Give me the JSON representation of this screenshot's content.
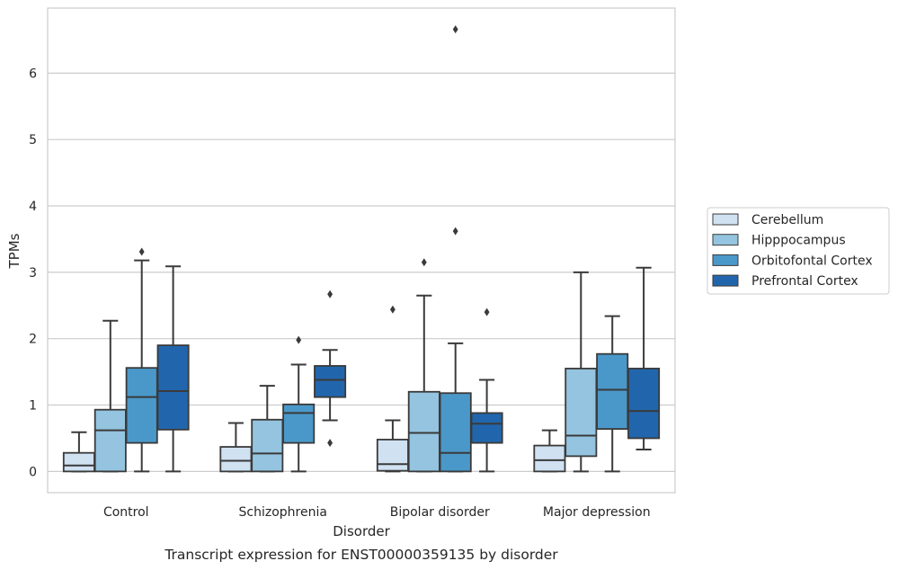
{
  "chart_data": {
    "type": "box",
    "caption": "Transcript expression for ENST00000359135 by disorder",
    "xlabel": "Disorder",
    "ylabel": "TPMs",
    "ylim": [
      -0.32,
      6.98
    ],
    "yticks": [
      0,
      1,
      2,
      3,
      4,
      5,
      6
    ],
    "grid": true,
    "legend_position": "right",
    "categories": [
      "Control",
      "Schizophrenia",
      "Bipolar disorder",
      "Major depression"
    ],
    "series": [
      {
        "name": "Cerebellum",
        "color": "#d0e1f2",
        "boxes": [
          {
            "whislo": 0.0,
            "q1": 0.0,
            "med": 0.09,
            "q3": 0.28,
            "whishi": 0.59,
            "fliers": []
          },
          {
            "whislo": 0.0,
            "q1": 0.0,
            "med": 0.16,
            "q3": 0.37,
            "whishi": 0.73,
            "fliers": []
          },
          {
            "whislo": 0.0,
            "q1": 0.01,
            "med": 0.11,
            "q3": 0.48,
            "whishi": 0.77,
            "fliers": [
              2.44
            ]
          },
          {
            "whislo": 0.0,
            "q1": 0.0,
            "med": 0.17,
            "q3": 0.39,
            "whishi": 0.62,
            "fliers": []
          }
        ]
      },
      {
        "name": "Hipppocampus",
        "color": "#94c4df",
        "boxes": [
          {
            "whislo": 0.0,
            "q1": 0.0,
            "med": 0.62,
            "q3": 0.93,
            "whishi": 2.27,
            "fliers": []
          },
          {
            "whislo": 0.0,
            "q1": 0.0,
            "med": 0.27,
            "q3": 0.78,
            "whishi": 1.29,
            "fliers": []
          },
          {
            "whislo": 0.0,
            "q1": 0.0,
            "med": 0.58,
            "q3": 1.2,
            "whishi": 2.65,
            "fliers": [
              3.15
            ]
          },
          {
            "whislo": 0.0,
            "q1": 0.23,
            "med": 0.54,
            "q3": 1.55,
            "whishi": 3.0,
            "fliers": []
          }
        ]
      },
      {
        "name": "Orbitofontal Cortex",
        "color": "#4a98c9",
        "boxes": [
          {
            "whislo": 0.0,
            "q1": 0.43,
            "med": 1.12,
            "q3": 1.56,
            "whishi": 3.18,
            "fliers": [
              3.31
            ]
          },
          {
            "whislo": 0.0,
            "q1": 0.43,
            "med": 0.88,
            "q3": 1.01,
            "whishi": 1.61,
            "fliers": [
              1.98
            ]
          },
          {
            "whislo": 0.0,
            "q1": 0.0,
            "med": 0.28,
            "q3": 1.18,
            "whishi": 1.93,
            "fliers": [
              3.62,
              6.66
            ]
          },
          {
            "whislo": 0.0,
            "q1": 0.64,
            "med": 1.23,
            "q3": 1.77,
            "whishi": 2.34,
            "fliers": []
          }
        ]
      },
      {
        "name": "Prefrontal Cortex",
        "color": "#2166ac",
        "boxes": [
          {
            "whislo": 0.0,
            "q1": 0.63,
            "med": 1.21,
            "q3": 1.9,
            "whishi": 3.09,
            "fliers": []
          },
          {
            "whislo": 0.77,
            "q1": 1.12,
            "med": 1.38,
            "q3": 1.59,
            "whishi": 1.83,
            "fliers": [
              0.43,
              2.67
            ]
          },
          {
            "whislo": 0.0,
            "q1": 0.43,
            "med": 0.72,
            "q3": 0.88,
            "whishi": 1.38,
            "fliers": [
              2.4
            ]
          },
          {
            "whislo": 0.33,
            "q1": 0.5,
            "med": 0.91,
            "q3": 1.55,
            "whishi": 3.07,
            "fliers": []
          }
        ]
      }
    ]
  }
}
